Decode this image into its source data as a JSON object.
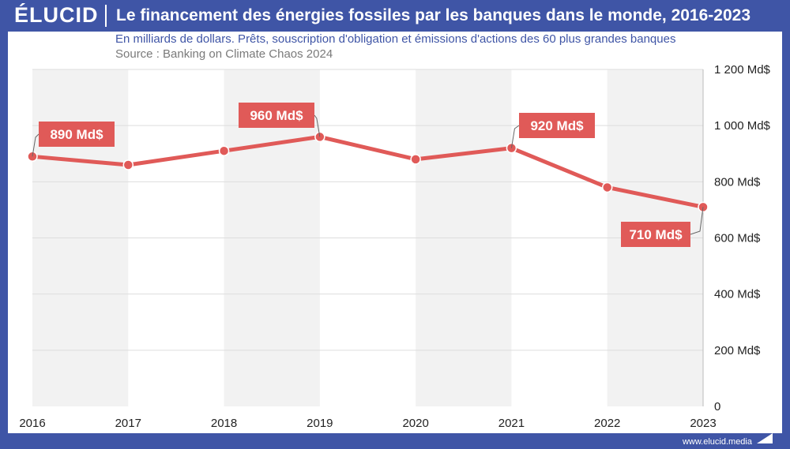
{
  "brand": {
    "logo": "ÉLUCID",
    "footer": "www.elucid.media"
  },
  "colors": {
    "frame": "#3f55a6",
    "line": "#e05a58",
    "band": "#f2f2f2",
    "grid": "#dddddd"
  },
  "chart_data": {
    "type": "line",
    "title": "Le financement des énergies fossiles par les banques dans le monde, 2016-2023",
    "subtitle": "En milliards de dollars. Prêts, souscription d'obligation et émissions d'actions des 60 plus grandes banques",
    "source": "Source : Banking on Climate Chaos 2024",
    "x": [
      "2016",
      "2017",
      "2018",
      "2019",
      "2020",
      "2021",
      "2022",
      "2023"
    ],
    "series": [
      {
        "values": [
          890,
          860,
          910,
          960,
          880,
          920,
          780,
          710
        ]
      }
    ],
    "ylim": [
      0,
      1200
    ],
    "yticks": [
      0,
      200,
      400,
      600,
      800,
      1000,
      1200
    ],
    "ytick_labels": [
      "0",
      "200 Md$",
      "400 Md$",
      "600 Md$",
      "800 Md$",
      "1 000 Md$",
      "1 200 Md$"
    ],
    "annotations": [
      {
        "x": "2016",
        "value": 890,
        "text": "890 Md$"
      },
      {
        "x": "2019",
        "value": 960,
        "text": "960 Md$"
      },
      {
        "x": "2021",
        "value": 920,
        "text": "920 Md$"
      },
      {
        "x": "2023",
        "value": 710,
        "text": "710 Md$"
      }
    ],
    "grid": true
  }
}
